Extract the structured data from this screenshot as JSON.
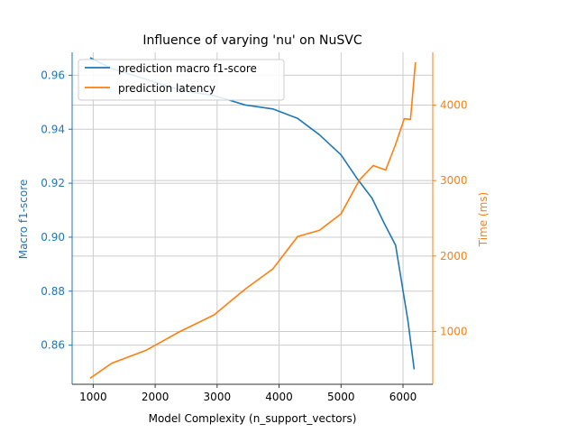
{
  "chart_data": {
    "type": "line",
    "title": "Influence of varying 'nu' on NuSVC",
    "xlabel": "Model Complexity (n_support_vectors)",
    "ylabel_left": "Macro f1-score",
    "ylabel_right": "Time (ms)",
    "xlim": [
      660,
      6480
    ],
    "ylim_left": [
      0.8455,
      0.9685
    ],
    "ylim_right": [
      300,
      4700
    ],
    "x_ticks": [
      1000,
      2000,
      3000,
      4000,
      5000,
      6000
    ],
    "x_tick_labels": [
      "1000",
      "2000",
      "3000",
      "4000",
      "5000",
      "6000"
    ],
    "y_left_ticks": [
      0.86,
      0.88,
      0.9,
      0.92,
      0.94,
      0.96
    ],
    "y_left_tick_labels": [
      "0.86",
      "0.88",
      "0.90",
      "0.92",
      "0.94",
      "0.96"
    ],
    "y_right_ticks": [
      1000,
      2000,
      3000,
      4000
    ],
    "y_right_tick_labels": [
      "1000",
      "2000",
      "3000",
      "4000"
    ],
    "grid": true,
    "legend_position": "top-left",
    "colors": {
      "left": "#1f77b4",
      "right": "#ff7f0e"
    },
    "series": [
      {
        "name": "prediction macro f1-score",
        "axis": "left",
        "x": [
          950,
          1300,
          1850,
          2400,
          2950,
          3450,
          3900,
          4300,
          4650,
          5000,
          5250,
          5500,
          5700,
          5880,
          6080,
          6180
        ],
        "y": [
          0.9665,
          0.9625,
          0.9585,
          0.9545,
          0.9525,
          0.949,
          0.9475,
          0.944,
          0.938,
          0.9305,
          0.922,
          0.9145,
          0.905,
          0.897,
          0.869,
          0.851
        ]
      },
      {
        "name": "prediction latency",
        "axis": "right",
        "x": [
          950,
          1300,
          1850,
          2400,
          2950,
          3450,
          3900,
          4300,
          4650,
          5000,
          5300,
          5520,
          5720,
          5880,
          6020,
          6120,
          6200
        ],
        "y": [
          380,
          580,
          750,
          1000,
          1220,
          1560,
          1830,
          2260,
          2340,
          2560,
          3010,
          3200,
          3140,
          3480,
          3820,
          3810,
          4570
        ]
      }
    ]
  }
}
